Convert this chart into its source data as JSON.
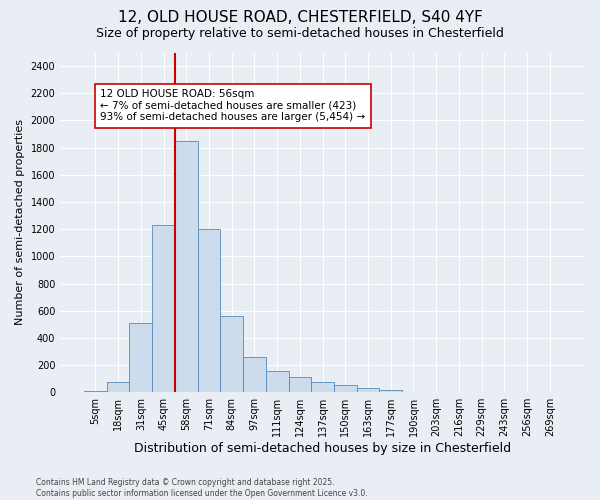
{
  "title": "12, OLD HOUSE ROAD, CHESTERFIELD, S40 4YF",
  "subtitle": "Size of property relative to semi-detached houses in Chesterfield",
  "xlabel": "Distribution of semi-detached houses by size in Chesterfield",
  "ylabel": "Number of semi-detached properties",
  "footnote": "Contains HM Land Registry data © Crown copyright and database right 2025.\nContains public sector information licensed under the Open Government Licence v3.0.",
  "bar_labels": [
    "5sqm",
    "18sqm",
    "31sqm",
    "45sqm",
    "58sqm",
    "71sqm",
    "84sqm",
    "97sqm",
    "111sqm",
    "124sqm",
    "137sqm",
    "150sqm",
    "163sqm",
    "177sqm",
    "190sqm",
    "203sqm",
    "216sqm",
    "229sqm",
    "243sqm",
    "256sqm",
    "269sqm"
  ],
  "bar_values": [
    10,
    75,
    510,
    1230,
    1850,
    1200,
    560,
    260,
    155,
    110,
    75,
    55,
    28,
    14,
    4,
    3,
    2,
    1,
    0,
    0,
    0
  ],
  "bar_color": "#ccdcec",
  "bar_edge_color": "#5588bb",
  "background_color": "#e8eef4",
  "grid_color": "#ffffff",
  "vline_color": "#cc0000",
  "vline_pos": 3.5,
  "annotation_text": "12 OLD HOUSE ROAD: 56sqm\n← 7% of semi-detached houses are smaller (423)\n93% of semi-detached houses are larger (5,454) →",
  "ylim": [
    0,
    2500
  ],
  "yticks": [
    0,
    200,
    400,
    600,
    800,
    1000,
    1200,
    1400,
    1600,
    1800,
    2000,
    2200,
    2400
  ],
  "title_fontsize": 11,
  "subtitle_fontsize": 9,
  "xlabel_fontsize": 9,
  "ylabel_fontsize": 8,
  "tick_fontsize": 7,
  "annot_fontsize": 7.5,
  "footnote_fontsize": 5.5
}
